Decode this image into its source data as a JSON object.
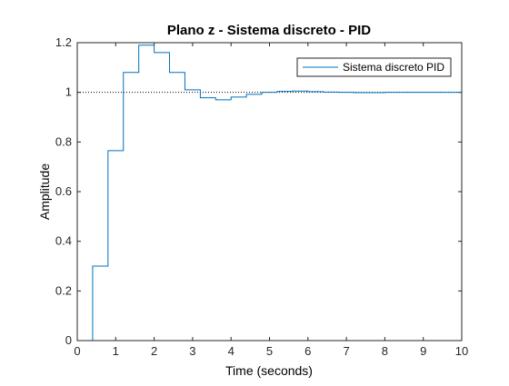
{
  "chart_data": {
    "type": "line",
    "title": "Plano z - Sistema discreto - PID",
    "xlabel": "Time (seconds)",
    "ylabel": "Amplitude",
    "xlim": [
      0,
      10
    ],
    "ylim": [
      0,
      1.2
    ],
    "xticks": [
      0,
      1,
      2,
      3,
      4,
      5,
      6,
      7,
      8,
      9,
      10
    ],
    "yticks": [
      0,
      0.2,
      0.4,
      0.6,
      0.8,
      1,
      1.2
    ],
    "grid": false,
    "legend_position": "top-right",
    "reference_line": {
      "y": 1,
      "style": "dotted",
      "color": "#000000"
    },
    "series": [
      {
        "name": "Sistema discreto PID",
        "color": "#0072BD",
        "style": "stairs",
        "x": [
          0,
          0.4,
          0.8,
          1.2,
          1.6,
          2.0,
          2.4,
          2.8,
          3.2,
          3.6,
          4.0,
          4.4,
          4.8,
          5.2,
          5.6,
          6.0,
          6.4,
          6.8,
          7.2,
          7.6,
          8.0,
          8.4,
          8.8,
          9.2,
          9.6
        ],
        "y": [
          0,
          0.3,
          0.765,
          1.08,
          1.19,
          1.16,
          1.08,
          1.01,
          0.978,
          0.97,
          0.981,
          0.992,
          1.0,
          1.004,
          1.005,
          1.003,
          1.001,
          1.0,
          0.999,
          0.999,
          1.0,
          1.0,
          1.0,
          1.0,
          1.0
        ]
      }
    ]
  }
}
